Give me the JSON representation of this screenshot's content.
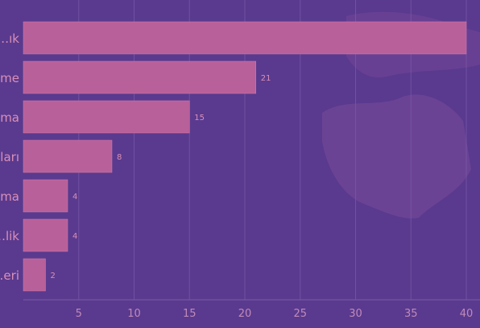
{
  "chart_data": {
    "type": "bar",
    "orientation": "horizontal",
    "title": "",
    "xlabel": "",
    "ylabel": "",
    "categories": [
      "…ık",
      "…me",
      "…ma",
      "…ları",
      "…ma",
      "…lik",
      "…eri"
    ],
    "values": [
      40,
      21,
      15,
      8,
      4,
      4,
      2
    ],
    "value_labels": [
      "",
      "21",
      "15",
      "8",
      "4",
      "4",
      "2"
    ],
    "xlim": [
      0,
      40
    ],
    "xticks": [
      5,
      10,
      15,
      20,
      25,
      30,
      35,
      40
    ],
    "grid": true,
    "legend": "none"
  },
  "colors": {
    "background": "#5a3a8e",
    "map_background": "#7a4a9a",
    "bar": "#b8609a",
    "bar_edge": "#d47aa8",
    "grid": "#7a5aa8",
    "label": "#d98fb8",
    "tick_label": "#c08ab8"
  }
}
